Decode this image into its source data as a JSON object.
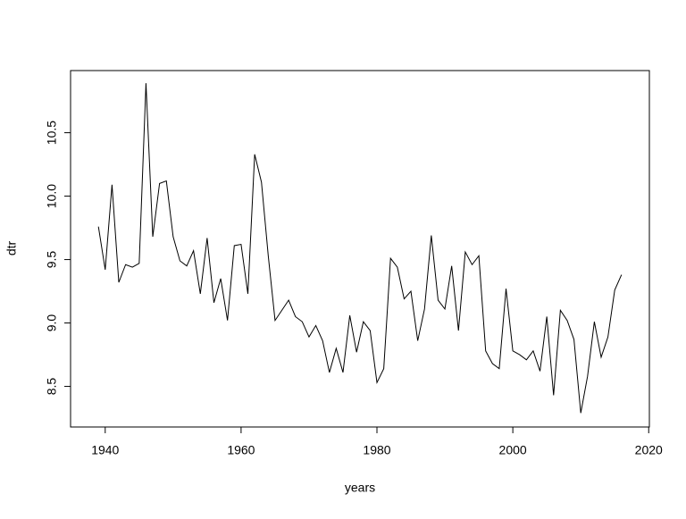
{
  "chart_data": {
    "type": "line",
    "x_label": "years",
    "y_label": "dtr",
    "x": [
      1939,
      1940,
      1941,
      1942,
      1943,
      1944,
      1945,
      1946,
      1947,
      1948,
      1949,
      1950,
      1951,
      1952,
      1953,
      1954,
      1955,
      1956,
      1957,
      1958,
      1959,
      1960,
      1961,
      1962,
      1963,
      1964,
      1965,
      1966,
      1967,
      1968,
      1969,
      1970,
      1971,
      1972,
      1973,
      1974,
      1975,
      1976,
      1977,
      1978,
      1979,
      1980,
      1981,
      1982,
      1983,
      1984,
      1985,
      1986,
      1987,
      1988,
      1989,
      1990,
      1991,
      1992,
      1993,
      1994,
      1995,
      1996,
      1997,
      1998,
      1999,
      2000,
      2001,
      2002,
      2003,
      2004,
      2005,
      2006,
      2007,
      2008,
      2009,
      2010,
      2011,
      2012,
      2013,
      2014,
      2015,
      2016
    ],
    "values": [
      9.76,
      9.42,
      10.09,
      9.32,
      9.46,
      9.44,
      9.47,
      10.89,
      9.68,
      10.1,
      10.12,
      9.68,
      9.49,
      9.45,
      9.57,
      9.23,
      9.67,
      9.16,
      9.35,
      9.02,
      9.61,
      9.62,
      9.23,
      10.33,
      10.11,
      9.53,
      9.02,
      9.1,
      9.18,
      9.05,
      9.01,
      8.89,
      8.98,
      8.86,
      8.61,
      8.8,
      8.61,
      9.06,
      8.77,
      9.01,
      8.94,
      8.53,
      8.64,
      9.51,
      9.44,
      9.19,
      9.25,
      8.86,
      9.11,
      9.69,
      9.18,
      9.11,
      9.45,
      8.94,
      9.56,
      9.46,
      9.53,
      8.78,
      8.68,
      8.64,
      9.27,
      8.78,
      8.75,
      8.71,
      8.78,
      8.62,
      9.05,
      8.43,
      9.1,
      9.02,
      8.87,
      8.29,
      8.58,
      9.01,
      8.73,
      8.89,
      9.26,
      9.38
    ],
    "color": "#000000",
    "xlim": [
      1934.9,
      2020.1
    ],
    "xticks": [
      1940,
      1960,
      1980,
      2000,
      2020
    ],
    "ylim": [
      8.18,
      10.99
    ],
    "yticks": [
      8.5,
      {
        "value": 9,
        "label": "9.0"
      },
      9.5,
      {
        "value": 10,
        "label": "10.0"
      },
      10.5
    ]
  }
}
